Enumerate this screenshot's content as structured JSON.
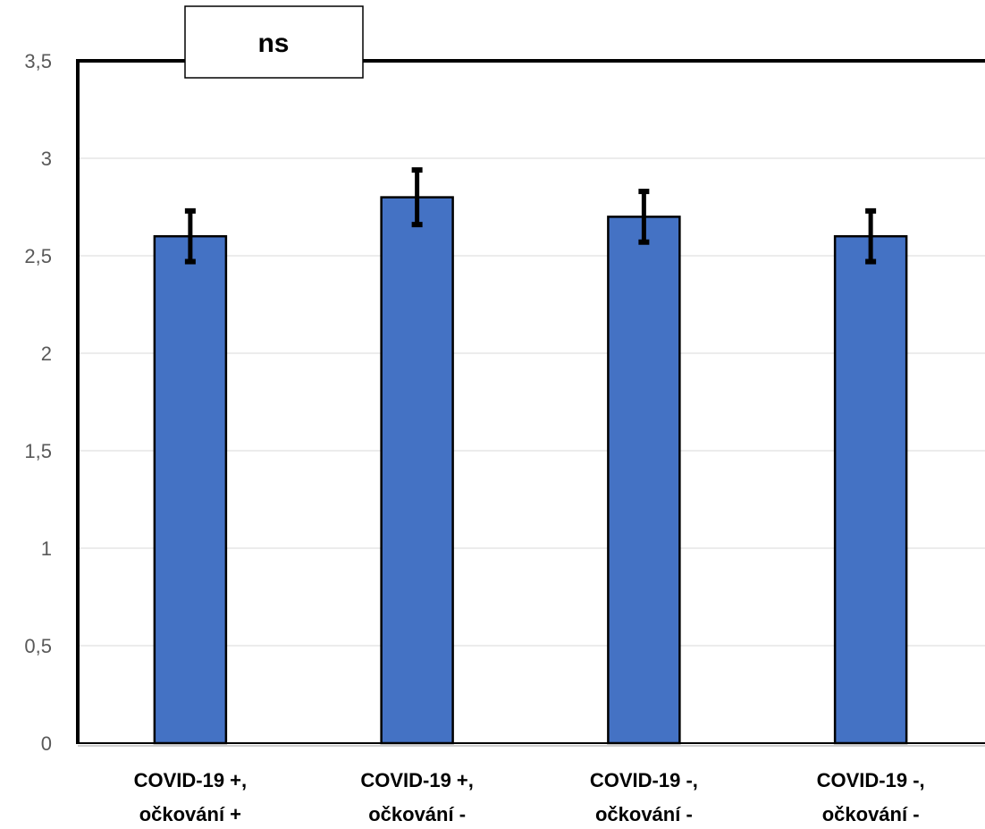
{
  "chart_data": {
    "type": "bar",
    "categories": [
      [
        "COVID-19 +,",
        "očkování +"
      ],
      [
        "COVID-19 +,",
        "očkování -"
      ],
      [
        "COVID-19 -,",
        "očkování -"
      ],
      [
        "COVID-19 -,",
        "očkování -"
      ]
    ],
    "values": [
      2.6,
      2.8,
      2.7,
      2.6
    ],
    "error": [
      0.13,
      0.14,
      0.13,
      0.13
    ],
    "ylim": [
      0,
      3.5
    ],
    "yticks": [
      "0",
      "0,5",
      "1",
      "1,5",
      "2",
      "2,5",
      "3",
      "3,5"
    ],
    "grid": true,
    "annotation": "ns",
    "title": "",
    "xlabel": "",
    "ylabel": "",
    "colors": {
      "bar": "#4472C4",
      "outline": "#000000",
      "grid": "#d9d9d9",
      "error": "#000000"
    }
  }
}
